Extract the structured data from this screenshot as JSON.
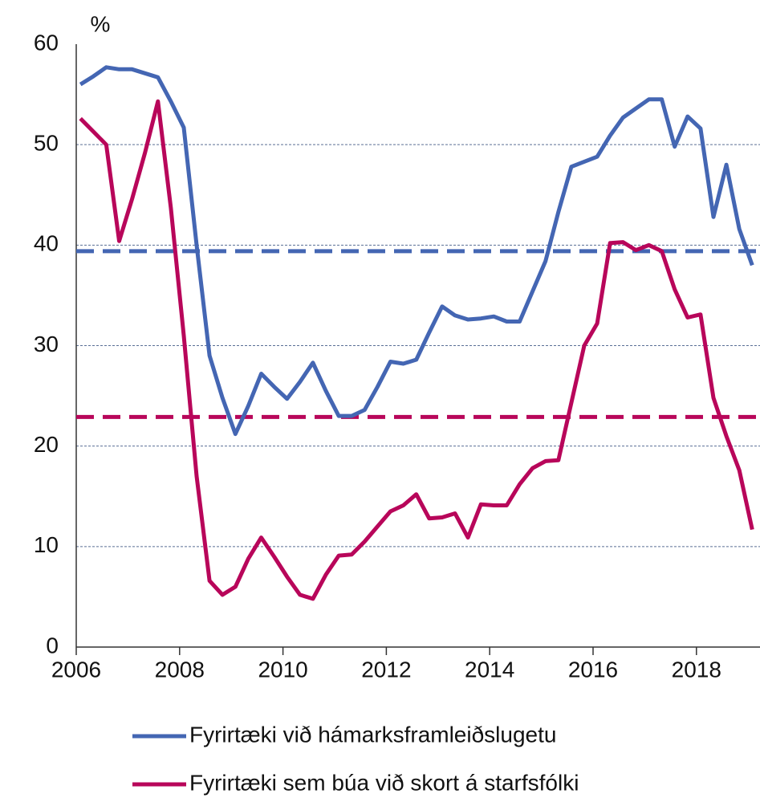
{
  "chart_data": {
    "type": "line",
    "y_unit": "%",
    "x": [
      2006.08,
      2006.33,
      2006.58,
      2006.83,
      2007.08,
      2007.33,
      2007.58,
      2007.83,
      2008.08,
      2008.33,
      2008.58,
      2008.83,
      2009.08,
      2009.33,
      2009.58,
      2009.83,
      2010.08,
      2010.33,
      2010.58,
      2010.83,
      2011.08,
      2011.33,
      2011.58,
      2011.83,
      2012.08,
      2012.33,
      2012.58,
      2012.83,
      2013.08,
      2013.33,
      2013.58,
      2013.83,
      2014.08,
      2014.33,
      2014.58,
      2014.83,
      2015.08,
      2015.33,
      2015.58,
      2015.83,
      2016.08,
      2016.33,
      2016.58,
      2016.83,
      2017.08,
      2017.33,
      2017.58,
      2017.83,
      2018.08,
      2018.33,
      2018.58,
      2018.83,
      2019.08
    ],
    "series": [
      {
        "name": "Fyrirtæki við hámarksframleiðslugetu",
        "color": "#4466b3",
        "values": [
          56,
          56.8,
          57.7,
          57.5,
          57.5,
          57.1,
          56.7,
          54.3,
          51.7,
          40,
          29,
          24.8,
          21.2,
          24,
          27.2,
          25.9,
          24.7,
          26.4,
          28.3,
          25.5,
          23,
          23,
          23.6,
          25.9,
          28.4,
          28.2,
          28.6,
          31.3,
          33.9,
          33,
          32.6,
          32.7,
          32.9,
          32.4,
          32.4,
          35.4,
          38.4,
          43.3,
          47.8,
          48.3,
          48.8,
          50.9,
          52.7,
          53.6,
          54.5,
          54.5,
          49.8,
          52.8,
          51.6,
          42.8,
          48,
          41.6,
          38
        ]
      },
      {
        "name": "Fyrirtæki sem búa við skort á starfsfólki",
        "color": "#b8065a",
        "values": [
          52.6,
          51.3,
          50,
          40.4,
          44.6,
          49.2,
          54.3,
          43.7,
          31,
          17,
          6.6,
          5.2,
          6,
          8.8,
          10.9,
          9,
          7,
          5.2,
          4.8,
          7.2,
          9.1,
          9.2,
          10.5,
          12,
          13.5,
          14.1,
          15.2,
          12.8,
          12.9,
          13.3,
          10.9,
          14.2,
          14.1,
          14.1,
          16.2,
          17.8,
          18.5,
          18.6,
          24.3,
          30,
          32.2,
          40.2,
          40.3,
          39.5,
          40,
          39.4,
          35.6,
          32.8,
          33.1,
          24.8,
          21,
          17.6,
          11.7
        ]
      }
    ],
    "reference_lines": [
      {
        "value": 39.4,
        "color": "#4466b3"
      },
      {
        "value": 22.9,
        "color": "#b8065a"
      }
    ],
    "xlim": [
      2006,
      2019.23
    ],
    "xticks": [
      2006,
      2008,
      2010,
      2012,
      2014,
      2016,
      2018
    ],
    "ylim": [
      0,
      60
    ],
    "yticks": [
      0,
      10,
      20,
      30,
      40,
      50,
      60
    ],
    "grid": true
  }
}
